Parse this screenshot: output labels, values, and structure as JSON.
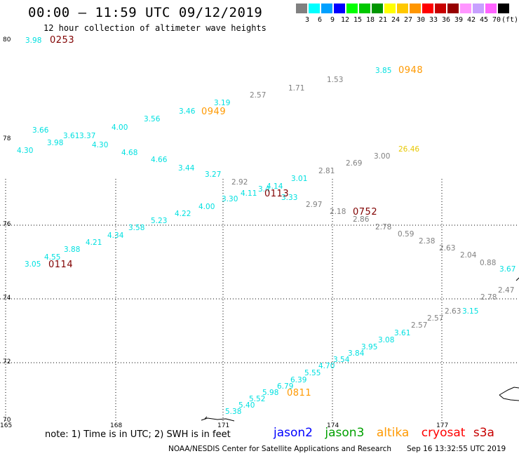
{
  "header": {
    "title": "00:00 – 11:59 UTC 09/12/2019",
    "subtitle": "12 hour collection of altimeter wave heights"
  },
  "legend": {
    "unit": "(ft)",
    "bins": [
      {
        "label": "3",
        "color": "#808080"
      },
      {
        "label": "6",
        "color": "#00ffff"
      },
      {
        "label": "9",
        "color": "#00a0ff"
      },
      {
        "label": "12",
        "color": "#0000ff"
      },
      {
        "label": "15",
        "color": "#00ff00"
      },
      {
        "label": "18",
        "color": "#00c800"
      },
      {
        "label": "21",
        "color": "#009600"
      },
      {
        "label": "24",
        "color": "#ffff00"
      },
      {
        "label": "27",
        "color": "#ffc800"
      },
      {
        "label": "30",
        "color": "#ff9600"
      },
      {
        "label": "33",
        "color": "#ff0000"
      },
      {
        "label": "36",
        "color": "#c80000"
      },
      {
        "label": "39",
        "color": "#960000"
      },
      {
        "label": "42",
        "color": "#ff96ff"
      },
      {
        "label": "45",
        "color": "#c8a0ff"
      },
      {
        "label": "70",
        "color": "#ff64ff"
      },
      {
        "label": "",
        "color": "#000000"
      }
    ]
  },
  "axes": {
    "lat_labels": [
      "80",
      "78",
      "76",
      "74",
      "72",
      "70"
    ],
    "lon_labels": [
      "165",
      "168",
      "171",
      "174",
      "177"
    ]
  },
  "colors": {
    "cyan": "#00e0e0",
    "gray": "#808080",
    "orange": "#ff9900",
    "yellow": "#e8c800",
    "darkred": "#800000"
  },
  "observations": [
    {
      "t": "3.98",
      "c": "cyan"
    },
    {
      "t": "3.85",
      "c": "cyan"
    },
    {
      "t": "1.53",
      "c": "gray"
    },
    {
      "t": "1.71",
      "c": "gray"
    },
    {
      "t": "2.57",
      "c": "gray"
    },
    {
      "t": "3.19",
      "c": "cyan"
    },
    {
      "t": "3.46",
      "c": "cyan"
    },
    {
      "t": "3.56",
      "c": "cyan"
    },
    {
      "t": "4.00",
      "c": "cyan"
    },
    {
      "t": "3.66",
      "c": "cyan"
    },
    {
      "t": "3.61",
      "c": "cyan"
    },
    {
      "t": "3.37",
      "c": "cyan"
    },
    {
      "t": "3.98",
      "c": "cyan"
    },
    {
      "t": "4.30",
      "c": "cyan"
    },
    {
      "t": "4.30",
      "c": "cyan"
    },
    {
      "t": "4.68",
      "c": "cyan"
    },
    {
      "t": "4.66",
      "c": "cyan"
    },
    {
      "t": "3.44",
      "c": "cyan"
    },
    {
      "t": "3.27",
      "c": "cyan"
    },
    {
      "t": "26.46",
      "c": "yellow"
    },
    {
      "t": "3.00",
      "c": "gray"
    },
    {
      "t": "2.69",
      "c": "gray"
    },
    {
      "t": "2.81",
      "c": "gray"
    },
    {
      "t": "3.01",
      "c": "cyan"
    },
    {
      "t": "2.92",
      "c": "gray"
    },
    {
      "t": "4.14",
      "c": "cyan"
    },
    {
      "t": "3.4",
      "c": "cyan"
    },
    {
      "t": "4.11",
      "c": "cyan"
    },
    {
      "t": "3.30",
      "c": "cyan"
    },
    {
      "t": "3.33",
      "c": "cyan"
    },
    {
      "t": "2.97",
      "c": "gray"
    },
    {
      "t": "2.18",
      "c": "gray"
    },
    {
      "t": "2.86",
      "c": "gray"
    },
    {
      "t": "2.78",
      "c": "gray"
    },
    {
      "t": "4.00",
      "c": "cyan"
    },
    {
      "t": "4.22",
      "c": "cyan"
    },
    {
      "t": "5.23",
      "c": "cyan"
    },
    {
      "t": "3.58",
      "c": "cyan"
    },
    {
      "t": "4.34",
      "c": "cyan"
    },
    {
      "t": "4.21",
      "c": "cyan"
    },
    {
      "t": "3.88",
      "c": "cyan"
    },
    {
      "t": "4.55",
      "c": "cyan"
    },
    {
      "t": "3.05",
      "c": "cyan"
    },
    {
      "t": "0.59",
      "c": "gray"
    },
    {
      "t": "2.38",
      "c": "gray"
    },
    {
      "t": "2.63",
      "c": "gray"
    },
    {
      "t": "2.04",
      "c": "gray"
    },
    {
      "t": "0.88",
      "c": "gray"
    },
    {
      "t": "3.67",
      "c": "cyan"
    },
    {
      "t": "2.47",
      "c": "gray"
    },
    {
      "t": "2.78",
      "c": "gray"
    },
    {
      "t": "3.15",
      "c": "cyan"
    },
    {
      "t": "2.63",
      "c": "gray"
    },
    {
      "t": "2.57",
      "c": "gray"
    },
    {
      "t": "2.57",
      "c": "gray"
    },
    {
      "t": "3.61",
      "c": "cyan"
    },
    {
      "t": "3.08",
      "c": "cyan"
    },
    {
      "t": "3.95",
      "c": "cyan"
    },
    {
      "t": "3.84",
      "c": "cyan"
    },
    {
      "t": "3.54",
      "c": "cyan"
    },
    {
      "t": "4.70",
      "c": "cyan"
    },
    {
      "t": "5.55",
      "c": "cyan"
    },
    {
      "t": "6.39",
      "c": "cyan"
    },
    {
      "t": "6.79",
      "c": "cyan"
    },
    {
      "t": "5.98",
      "c": "cyan"
    },
    {
      "t": "5.52",
      "c": "cyan"
    },
    {
      "t": "5.40",
      "c": "cyan"
    },
    {
      "t": "5.38",
      "c": "cyan"
    }
  ],
  "time_labels": [
    {
      "t": "0253",
      "c": "darkred"
    },
    {
      "t": "0948",
      "c": "orange"
    },
    {
      "t": "0949",
      "c": "orange"
    },
    {
      "t": "0113",
      "c": "darkred"
    },
    {
      "t": "0752",
      "c": "darkred"
    },
    {
      "t": "0114",
      "c": "darkred"
    },
    {
      "t": "0811",
      "c": "orange"
    }
  ],
  "footer": {
    "note": "note: 1) Time is in UTC; 2) SWH is in feet",
    "satellites": [
      {
        "name": "jason2",
        "color": "#0000ff"
      },
      {
        "name": "jason3",
        "color": "#00a000"
      },
      {
        "name": "altika",
        "color": "#ff9900"
      },
      {
        "name": "cryosat",
        "color": "#ff0000"
      },
      {
        "name": "s3a",
        "color": "#c80000"
      }
    ],
    "credit": "NOAA/NESDIS Center for Satellite Applications and Research",
    "timestamp": "Sep 16 13:32:55 UTC 2019"
  }
}
